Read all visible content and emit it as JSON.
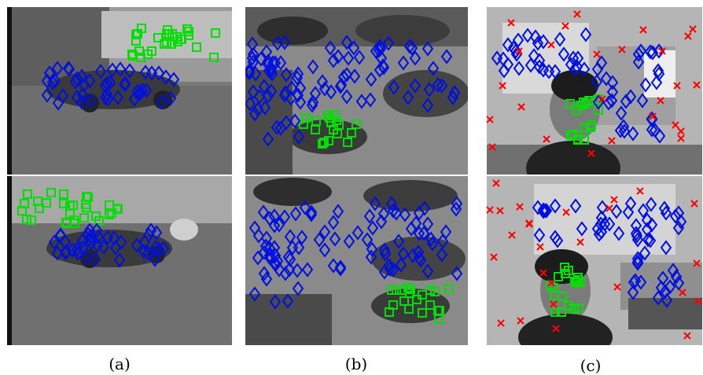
{
  "captions": {
    "a": "(a)",
    "b": "(b)",
    "c": "(c)"
  },
  "colors": {
    "inlier_square": "#00e000",
    "inlier_diamond": "#0010e0",
    "outlier_cross": "#ff0000"
  },
  "marker_legend": {
    "square": "green-square-marker",
    "diamond": "blue-diamond-marker",
    "cross": "red-cross-marker"
  }
}
